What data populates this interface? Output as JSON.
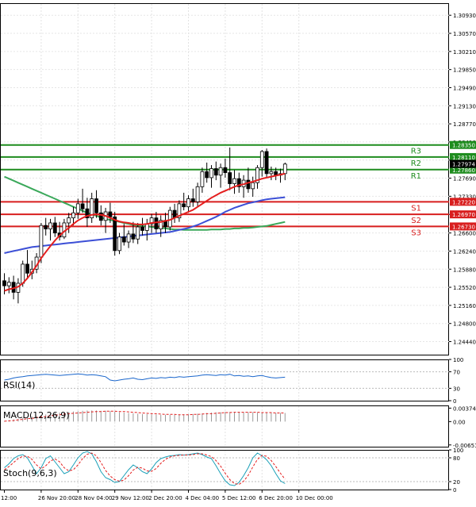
{
  "chart_data": {
    "type": "candlestick",
    "symbol": "",
    "price_axis": {
      "ylim": [
        1.2418,
        1.3117
      ],
      "ticks": [
        "1.30930",
        "1.30570",
        "1.30210",
        "1.29850",
        "1.29490",
        "1.29130",
        "1.28770",
        "1.28410",
        "1.28050",
        "1.27690",
        "1.27330",
        "1.26970",
        "1.26600",
        "1.26240",
        "1.25880",
        "1.25520",
        "1.25160",
        "1.24800",
        "1.24440"
      ],
      "current_price": "1.27974"
    },
    "levels": [
      {
        "label": "R3",
        "value": 1.2835,
        "value_text": "1.28350",
        "color": "#1e8c1e"
      },
      {
        "label": "R2",
        "value": 1.2811,
        "value_text": "1.28110",
        "color": "#1e8c1e"
      },
      {
        "label": "R1",
        "value": 1.2786,
        "value_text": "1.27860",
        "color": "#1e8c1e"
      },
      {
        "label": "S1",
        "value": 1.2722,
        "value_text": "1.27220",
        "color": "#d81e1e"
      },
      {
        "label": "S2",
        "value": 1.2697,
        "value_text": "1.26970",
        "color": "#d81e1e"
      },
      {
        "label": "S3",
        "value": 1.2673,
        "value_text": "1.26730",
        "color": "#d81e1e"
      }
    ],
    "x_labels": [
      {
        "text": "12:00",
        "i": 0
      },
      {
        "text": "26 Nov 20:00",
        "i": 8
      },
      {
        "text": "28 Nov 04:00",
        "i": 16
      },
      {
        "text": "29 Nov 12:00",
        "i": 24
      },
      {
        "text": "2 Dec 20:00",
        "i": 32
      },
      {
        "text": "4 Dec 04:00",
        "i": 40
      },
      {
        "text": "5 Dec 12:00",
        "i": 48
      },
      {
        "text": "6 Dec 20:00",
        "i": 56
      },
      {
        "text": "10 Dec 00:00",
        "i": 64
      }
    ],
    "candles": [
      [
        1.2565,
        1.258,
        1.2538,
        1.2555
      ],
      [
        1.2555,
        1.2572,
        1.254,
        1.2562
      ],
      [
        1.2562,
        1.2575,
        1.2528,
        1.2542
      ],
      [
        1.2542,
        1.257,
        1.252,
        1.256
      ],
      [
        1.256,
        1.2605,
        1.2553,
        1.2598
      ],
      [
        1.2598,
        1.2626,
        1.257,
        1.258
      ],
      [
        1.258,
        1.2605,
        1.2568,
        1.2588
      ],
      [
        1.2588,
        1.262,
        1.258,
        1.2612
      ],
      [
        1.2612,
        1.268,
        1.26,
        1.2675
      ],
      [
        1.2675,
        1.269,
        1.2655,
        1.2668
      ],
      [
        1.2668,
        1.2688,
        1.2645,
        1.268
      ],
      [
        1.268,
        1.2692,
        1.2652,
        1.266
      ],
      [
        1.266,
        1.2682,
        1.2645,
        1.2652
      ],
      [
        1.2652,
        1.2688,
        1.2648,
        1.268
      ],
      [
        1.268,
        1.27,
        1.266,
        1.269
      ],
      [
        1.269,
        1.2712,
        1.2675,
        1.27
      ],
      [
        1.27,
        1.2728,
        1.2688,
        1.2718
      ],
      [
        1.2718,
        1.2748,
        1.27,
        1.2708
      ],
      [
        1.2708,
        1.273,
        1.2672,
        1.269
      ],
      [
        1.269,
        1.274,
        1.268,
        1.2728
      ],
      [
        1.2728,
        1.2745,
        1.269,
        1.27
      ],
      [
        1.27,
        1.2715,
        1.2675,
        1.2685
      ],
      [
        1.2685,
        1.271,
        1.266,
        1.2702
      ],
      [
        1.2702,
        1.272,
        1.268,
        1.2692
      ],
      [
        1.2692,
        1.2702,
        1.2615,
        1.2625
      ],
      [
        1.2625,
        1.266,
        1.2618,
        1.2652
      ],
      [
        1.2652,
        1.2678,
        1.2635,
        1.2642
      ],
      [
        1.2642,
        1.2665,
        1.263,
        1.2658
      ],
      [
        1.2658,
        1.2682,
        1.264,
        1.2648
      ],
      [
        1.2648,
        1.268,
        1.2638,
        1.2672
      ],
      [
        1.2672,
        1.269,
        1.2655,
        1.2665
      ],
      [
        1.2665,
        1.2688,
        1.2645,
        1.2678
      ],
      [
        1.2678,
        1.2698,
        1.266,
        1.269
      ],
      [
        1.269,
        1.2702,
        1.266,
        1.2668
      ],
      [
        1.2668,
        1.2695,
        1.2652,
        1.2685
      ],
      [
        1.2685,
        1.27,
        1.266,
        1.2672
      ],
      [
        1.2672,
        1.2712,
        1.2665,
        1.2705
      ],
      [
        1.2705,
        1.2718,
        1.268,
        1.269
      ],
      [
        1.269,
        1.2725,
        1.2682,
        1.2718
      ],
      [
        1.2718,
        1.274,
        1.2705,
        1.2712
      ],
      [
        1.2712,
        1.2735,
        1.27,
        1.2728
      ],
      [
        1.2728,
        1.2748,
        1.2712,
        1.2722
      ],
      [
        1.2722,
        1.276,
        1.2712,
        1.2752
      ],
      [
        1.2752,
        1.279,
        1.274,
        1.2782
      ],
      [
        1.2782,
        1.28,
        1.276,
        1.277
      ],
      [
        1.277,
        1.2795,
        1.275,
        1.2788
      ],
      [
        1.2788,
        1.2802,
        1.2765,
        1.2775
      ],
      [
        1.2775,
        1.2798,
        1.275,
        1.279
      ],
      [
        1.279,
        1.2808,
        1.277,
        1.278
      ],
      [
        1.278,
        1.283,
        1.2745,
        1.2758
      ],
      [
        1.2758,
        1.2785,
        1.2738,
        1.2768
      ],
      [
        1.2768,
        1.278,
        1.274,
        1.2752
      ],
      [
        1.2752,
        1.2775,
        1.273,
        1.2765
      ],
      [
        1.2765,
        1.279,
        1.274,
        1.2748
      ],
      [
        1.2748,
        1.2772,
        1.2732,
        1.276
      ],
      [
        1.276,
        1.2795,
        1.2748,
        1.279
      ],
      [
        1.279,
        1.2825,
        1.2772,
        1.2822
      ],
      [
        1.2822,
        1.2828,
        1.277,
        1.2778
      ],
      [
        1.2778,
        1.2792,
        1.2765,
        1.2782
      ],
      [
        1.2782,
        1.279,
        1.2765,
        1.2775
      ],
      [
        1.2775,
        1.2788,
        1.276,
        1.2778
      ],
      [
        1.2778,
        1.28,
        1.2765,
        1.2797
      ]
    ],
    "ma_red": [
      1.2545,
      1.2548,
      1.255,
      1.2553,
      1.256,
      1.257,
      1.2582,
      1.2595,
      1.261,
      1.2622,
      1.2634,
      1.2645,
      1.2655,
      1.2663,
      1.267,
      1.2678,
      1.2685,
      1.269,
      1.2694,
      1.2696,
      1.2697,
      1.2696,
      1.2694,
      1.269,
      1.2686,
      1.2683,
      1.2681,
      1.268,
      1.2678,
      1.2677,
      1.2677,
      1.2678,
      1.268,
      1.2681,
      1.2682,
      1.2684,
      1.2686,
      1.269,
      1.2694,
      1.2698,
      1.2702,
      1.2706,
      1.2712,
      1.2718,
      1.2724,
      1.273,
      1.2735,
      1.274,
      1.2744,
      1.2748,
      1.2752,
      1.2755,
      1.2757,
      1.276,
      1.2762,
      1.2765,
      1.2768,
      1.277,
      1.2772,
      1.2774,
      1.2776,
      1.2778
    ],
    "ma_blue": [
      1.262,
      1.2622,
      1.2624,
      1.2626,
      1.2628,
      1.263,
      1.2632,
      1.2633,
      1.2634,
      1.2635,
      1.2636,
      1.2637,
      1.2638,
      1.2639,
      1.264,
      1.2641,
      1.2642,
      1.2643,
      1.2644,
      1.2645,
      1.2646,
      1.2647,
      1.2648,
      1.2649,
      1.265,
      1.2651,
      1.2652,
      1.2653,
      1.2654,
      1.2655,
      1.2656,
      1.2657,
      1.2658,
      1.2659,
      1.266,
      1.2661,
      1.2662,
      1.2664,
      1.2666,
      1.2668,
      1.267,
      1.2673,
      1.2676,
      1.268,
      1.2684,
      1.2688,
      1.2692,
      1.2697,
      1.2702,
      1.2706,
      1.271,
      1.2713,
      1.2716,
      1.2719,
      1.2721,
      1.2723,
      1.2725,
      1.2727,
      1.2728,
      1.2729,
      1.273,
      1.2731
    ],
    "ma_green": [
      1.2772,
      1.2768,
      1.2764,
      1.276,
      1.2756,
      1.2752,
      1.2748,
      1.2744,
      1.274,
      1.2736,
      1.2732,
      1.2728,
      1.2724,
      1.272,
      1.2716,
      1.2712,
      1.2708,
      1.2704,
      1.27,
      1.2697,
      1.2694,
      1.2691,
      1.2688,
      1.2686,
      1.2684,
      1.2682,
      1.268,
      1.2678,
      1.2676,
      1.2675,
      1.2674,
      1.2673,
      1.2672,
      1.2671,
      1.267,
      1.2669,
      1.2668,
      1.2667,
      1.2667,
      1.2666,
      1.2666,
      1.2666,
      1.2666,
      1.2666,
      1.2666,
      1.2667,
      1.2667,
      1.2667,
      1.2668,
      1.2668,
      1.2669,
      1.2669,
      1.267,
      1.267,
      1.2671,
      1.2672,
      1.2673,
      1.2674,
      1.2676,
      1.2678,
      1.268,
      1.2682
    ],
    "rsi": {
      "label": "RSI(14)",
      "ylim": [
        0,
        100
      ],
      "ticks": [
        "100",
        "70",
        "30",
        "0"
      ],
      "values": [
        50,
        52,
        55,
        57,
        58,
        60,
        61,
        62,
        63,
        64,
        63,
        62,
        61,
        62,
        63,
        64,
        65,
        64,
        62,
        63,
        62,
        60,
        58,
        50,
        48,
        50,
        52,
        53,
        55,
        52,
        51,
        53,
        55,
        54,
        56,
        55,
        57,
        56,
        58,
        57,
        58,
        59,
        60,
        62,
        63,
        62,
        61,
        63,
        62,
        64,
        60,
        61,
        59,
        60,
        58,
        60,
        61,
        58,
        56,
        55,
        56,
        57
      ]
    },
    "macd": {
      "label": "MACD(12,26,9)",
      "ylim": [
        -0.007,
        0.0045
      ],
      "ticks": [
        "0.003749",
        "0.00",
        "-0.006511"
      ],
      "bars": [
        0.0002,
        0.0004,
        0.0006,
        0.0008,
        0.001,
        0.0012,
        0.0014,
        0.0016,
        0.0018,
        0.002,
        0.0022,
        0.0024,
        0.0025,
        0.0026,
        0.0027,
        0.0028,
        0.0029,
        0.003,
        0.0031,
        0.0031,
        0.0031,
        0.003,
        0.003,
        0.0029,
        0.0028,
        0.0026,
        0.0025,
        0.0024,
        0.0023,
        0.0022,
        0.0021,
        0.0021,
        0.002,
        0.002,
        0.0019,
        0.0019,
        0.0019,
        0.0019,
        0.0019,
        0.002,
        0.002,
        0.0021,
        0.0022,
        0.0023,
        0.0024,
        0.0025,
        0.0026,
        0.0026,
        0.0027,
        0.0027,
        0.0027,
        0.0027,
        0.0026,
        0.0026,
        0.0026,
        0.0025,
        0.0025,
        0.0025,
        0.0024,
        0.0024,
        0.0024,
        0.0024
      ],
      "signal": [
        0.0001,
        0.0002,
        0.0003,
        0.0005,
        0.0006,
        0.0008,
        0.0009,
        0.0011,
        0.0013,
        0.0014,
        0.0016,
        0.0018,
        0.0019,
        0.0021,
        0.0022,
        0.0023,
        0.0024,
        0.0025,
        0.0026,
        0.0027,
        0.0028,
        0.0028,
        0.0029,
        0.0029,
        0.0029,
        0.0028,
        0.0028,
        0.0027,
        0.0026,
        0.0025,
        0.0024,
        0.0023,
        0.0022,
        0.0022,
        0.0021,
        0.002,
        0.002,
        0.002,
        0.0019,
        0.0019,
        0.0019,
        0.002,
        0.002,
        0.0021,
        0.0022,
        0.0022,
        0.0023,
        0.0024,
        0.0025,
        0.0025,
        0.0026,
        0.0026,
        0.0026,
        0.0026,
        0.0026,
        0.0026,
        0.0025,
        0.0025,
        0.0025,
        0.0024,
        0.0024,
        0.0024
      ]
    },
    "stoch": {
      "label": "Stoch(9,6,3)",
      "ylim": [
        0,
        100
      ],
      "ticks": [
        "100",
        "80",
        "20",
        "0"
      ],
      "k": [
        55,
        65,
        78,
        85,
        88,
        80,
        60,
        40,
        55,
        78,
        85,
        70,
        55,
        40,
        45,
        62,
        80,
        92,
        96,
        90,
        70,
        45,
        30,
        25,
        18,
        20,
        35,
        50,
        62,
        55,
        45,
        40,
        52,
        68,
        78,
        82,
        85,
        86,
        88,
        87,
        88,
        90,
        92,
        88,
        82,
        78,
        60,
        40,
        22,
        12,
        10,
        18,
        35,
        55,
        80,
        92,
        85,
        75,
        60,
        40,
        22,
        15
      ],
      "d": [
        50,
        58,
        68,
        78,
        84,
        84,
        76,
        62,
        52,
        60,
        72,
        77,
        70,
        55,
        47,
        50,
        62,
        78,
        89,
        92,
        85,
        68,
        48,
        34,
        25,
        21,
        24,
        35,
        49,
        56,
        54,
        47,
        46,
        53,
        66,
        76,
        82,
        85,
        86,
        87,
        87,
        88,
        90,
        90,
        87,
        83,
        73,
        59,
        41,
        25,
        15,
        13,
        21,
        36,
        57,
        76,
        86,
        84,
        73,
        58,
        41,
        26
      ]
    }
  }
}
